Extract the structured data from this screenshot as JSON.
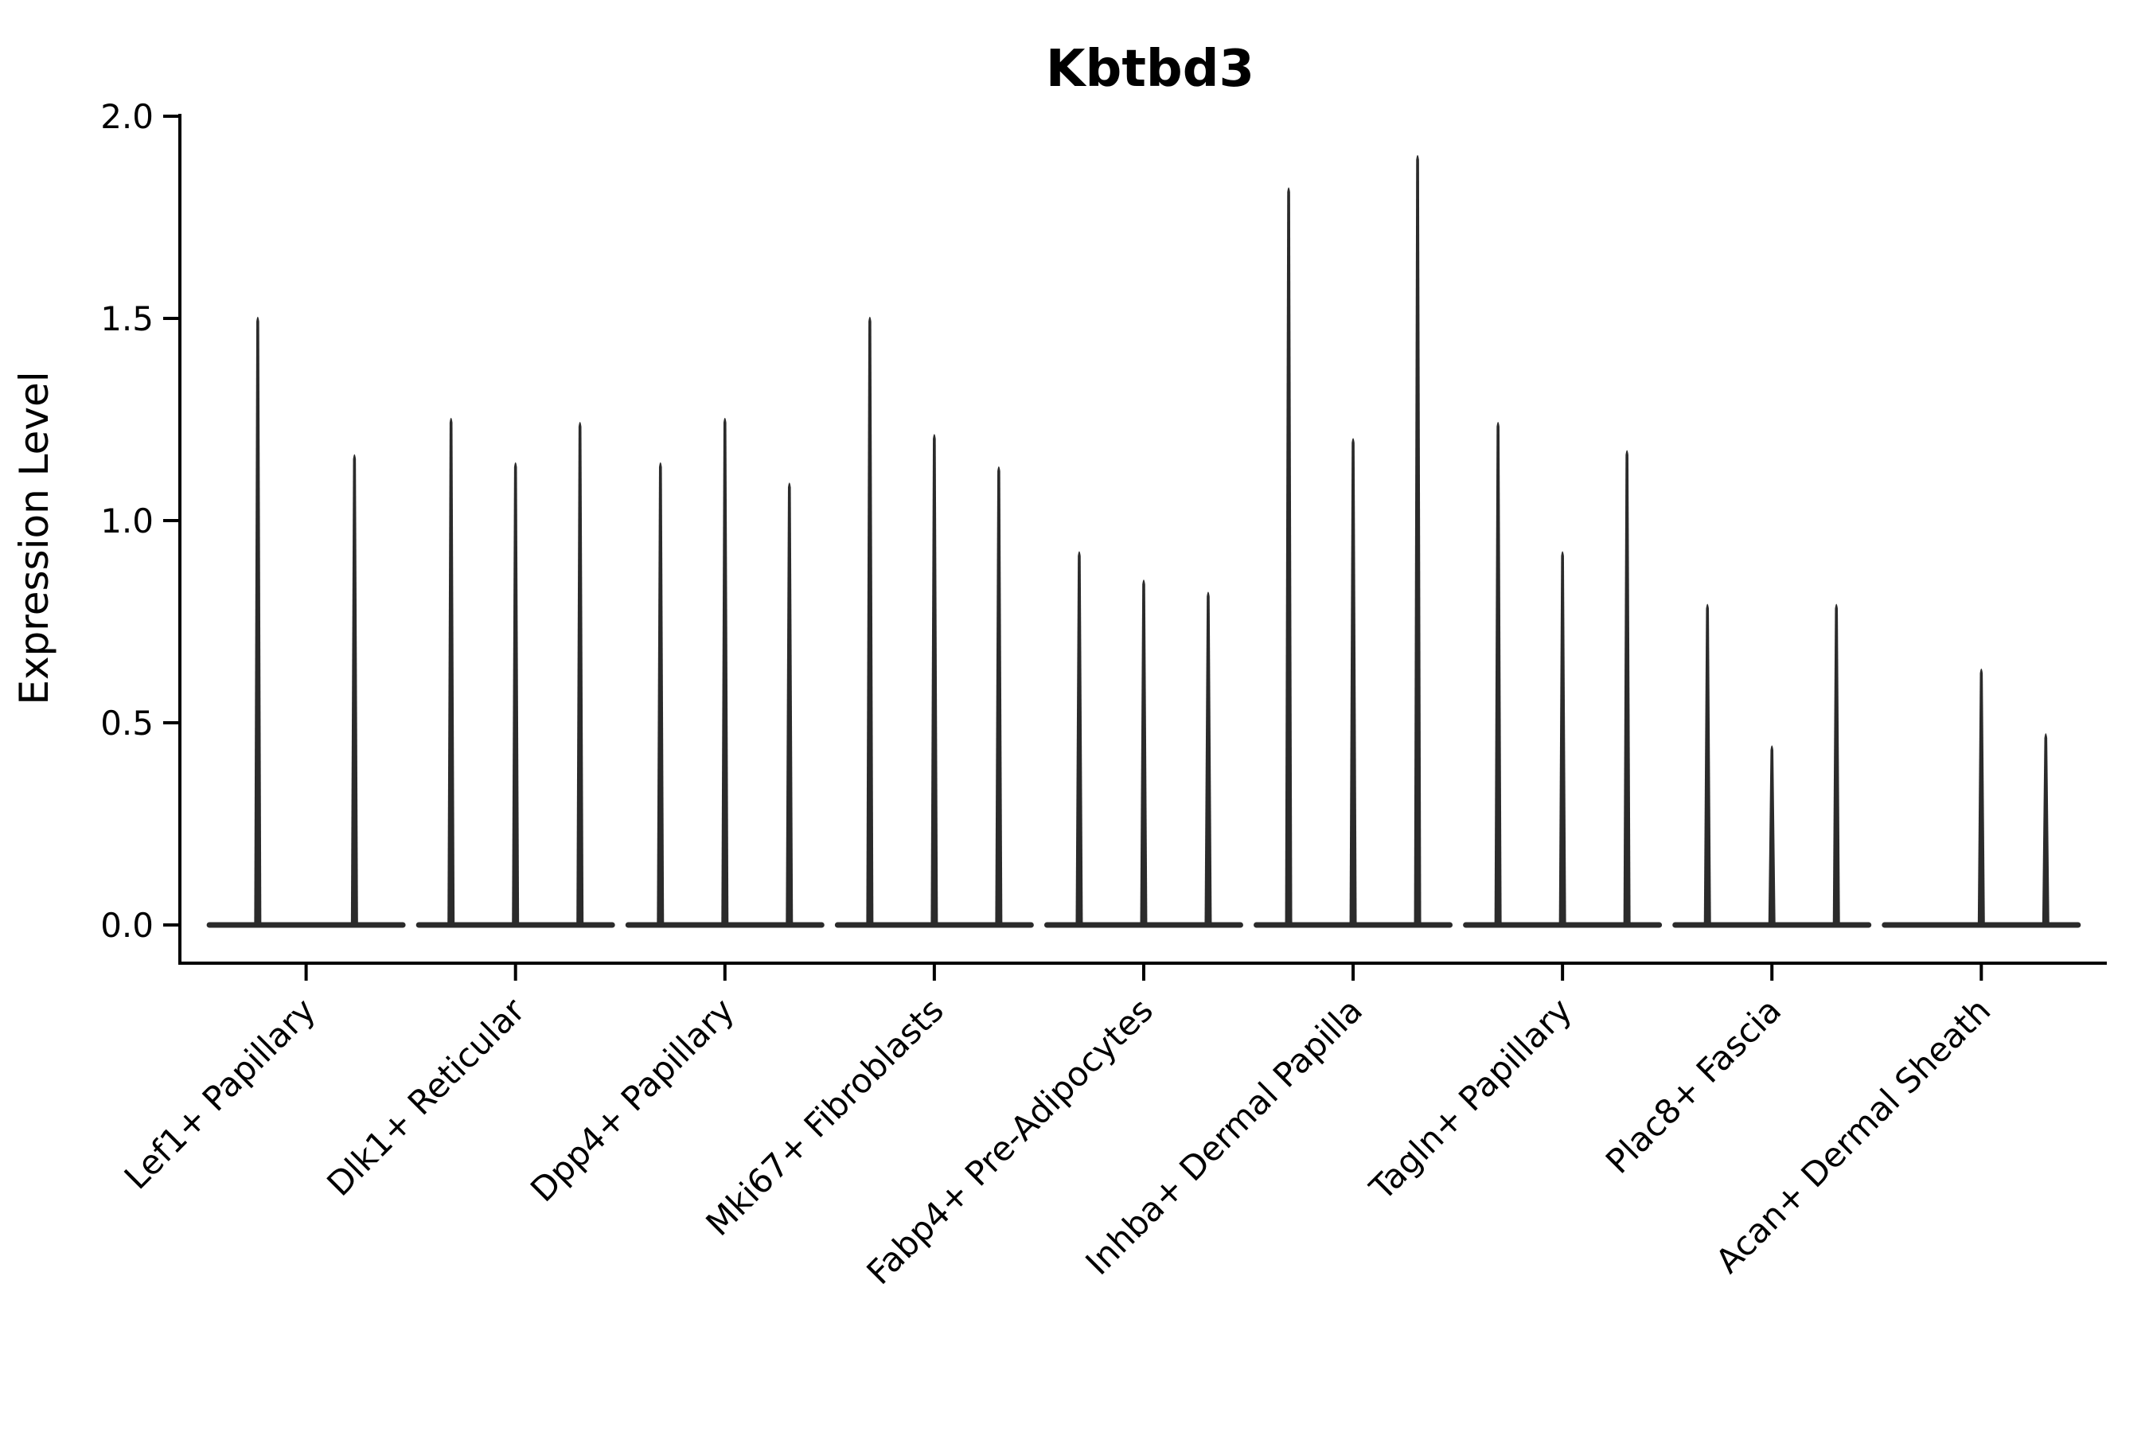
{
  "chart_data": {
    "type": "violin",
    "title": "Kbtbd3",
    "xlabel": "",
    "ylabel": "Expression Level",
    "ylim": [
      0,
      2.05
    ],
    "yticks": [
      0.0,
      0.5,
      1.0,
      1.5,
      2.0
    ],
    "ytick_labels": [
      "0.0",
      "0.5",
      "1.0",
      "1.5",
      "2.0"
    ],
    "grid": false,
    "legend": "none",
    "violin_color": "#2b2b2b",
    "axis_color": "#000000",
    "note": "Needle-shaped violins; bulk of density at 0 (flat base line per group); listed value is the max expression reached by each violin spike",
    "categories": [
      "Lef1+ Papillary",
      "Dlk1+ Reticular",
      "Dpp4+ Papillary",
      "Mki67+ Fibroblasts",
      "Fabp4+ Pre-Adipocytes",
      "Inhba+ Dermal Papilla",
      "Tagln+ Papillary",
      "Plac8+ Fascia",
      "Acan+ Dermal Sheath"
    ],
    "groups": [
      {
        "label": "Lef1+ Papillary",
        "violin_max": [
          1.51,
          1.17
        ]
      },
      {
        "label": "Dlk1+ Reticular",
        "violin_max": [
          1.26,
          1.15,
          1.25
        ]
      },
      {
        "label": "Dpp4+ Papillary",
        "violin_max": [
          1.15,
          1.26,
          1.1
        ]
      },
      {
        "label": "Mki67+ Fibroblasts",
        "violin_max": [
          1.51,
          1.22,
          1.14
        ]
      },
      {
        "label": "Fabp4+ Pre-Adipocytes",
        "violin_max": [
          0.93,
          0.86,
          0.83
        ]
      },
      {
        "label": "Inhba+ Dermal Papilla",
        "violin_max": [
          1.83,
          1.21,
          1.91
        ]
      },
      {
        "label": "Tagln+ Papillary",
        "violin_max": [
          1.25,
          0.93,
          1.18
        ]
      },
      {
        "label": "Plac8+ Fascia",
        "violin_max": [
          0.8,
          0.45,
          0.8
        ]
      },
      {
        "label": "Acan+ Dermal Sheath",
        "violin_max": [
          0.0,
          0.64,
          0.48
        ]
      }
    ]
  }
}
